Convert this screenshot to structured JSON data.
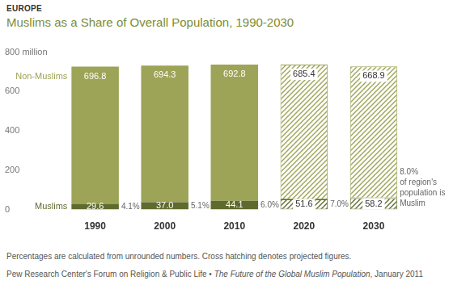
{
  "chart_data": {
    "type": "bar",
    "header": "EUROPE",
    "title": "Muslims as a Share of Overall Population, 1990-2030",
    "categories": [
      "1990",
      "2000",
      "2010",
      "2020",
      "2030"
    ],
    "projected": [
      false,
      false,
      false,
      true,
      true
    ],
    "series": [
      {
        "name": "Muslims",
        "color": "#5f6b2e",
        "values": [
          29.6,
          37.0,
          44.1,
          51.6,
          58.2
        ],
        "value_labels": [
          "29.6",
          "37.0",
          "44.1",
          "51.6",
          "58.2"
        ],
        "share_labels": [
          "4.1%",
          "5.1%",
          "6.0%",
          "7.0%",
          "8.0%"
        ],
        "share_note": "of region's population is Muslim"
      },
      {
        "name": "Non-Muslims",
        "color": "#9da457",
        "values": [
          696.8,
          694.3,
          692.8,
          685.4,
          668.9
        ]
      }
    ],
    "ylim": [
      0,
      800
    ],
    "yticks": [
      0,
      200,
      400,
      600,
      {
        "value": 800,
        "label": "800 million"
      }
    ],
    "stacked": true,
    "data_labels": true,
    "grid": false,
    "notes": "Percentages are calculated from unrounded numbers. Cross hatching denotes projected figures.",
    "source": [
      "Pew Research Center's Forum on Religion & Public Life • ",
      "The Future of the Global Muslim Population",
      ", January 2011"
    ]
  }
}
